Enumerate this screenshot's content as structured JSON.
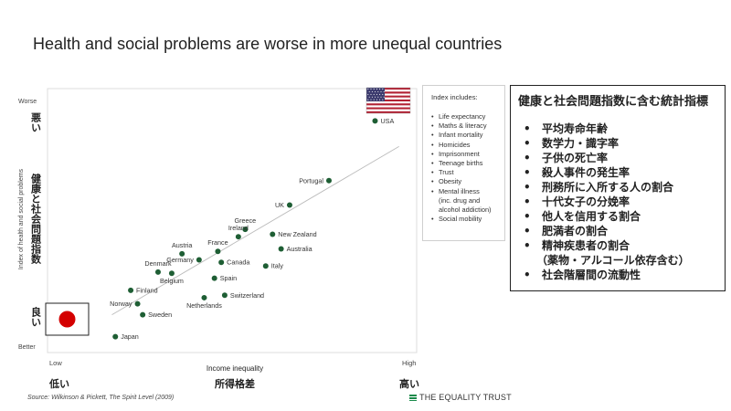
{
  "title": "Health and social problems are worse in more unequal countries",
  "chart_data": {
    "type": "scatter",
    "xlabel": "Income inequality",
    "xlabel_ja": "所得格差",
    "x_low": "Low",
    "x_low_ja": "低い",
    "x_high": "High",
    "x_high_ja": "高い",
    "ylabel": "Index of health and social problems",
    "ylabel_ja": "健康と社会問題指数",
    "y_top": "Worse",
    "y_top_ja": "悪い",
    "y_bottom": "Better",
    "y_bottom_ja": "良い",
    "xlim": [
      0,
      10
    ],
    "ylim": [
      0,
      10
    ],
    "point_color": "#1e5e34",
    "trendline": {
      "from": [
        1.35,
        1.1
      ],
      "to": [
        9.75,
        8.0
      ],
      "color": "#bbbbbb"
    },
    "points": [
      {
        "label": "USA",
        "x": 9.05,
        "y": 9.05,
        "label_side": "right"
      },
      {
        "label": "Portugal",
        "x": 7.7,
        "y": 6.6,
        "label_side": "left"
      },
      {
        "label": "UK",
        "x": 6.55,
        "y": 5.6,
        "label_side": "left"
      },
      {
        "label": "Greece",
        "x": 5.25,
        "y": 4.6,
        "label_side": "top"
      },
      {
        "label": "New Zealand",
        "x": 6.05,
        "y": 4.4,
        "label_side": "right"
      },
      {
        "label": "Ireland",
        "x": 5.05,
        "y": 4.3,
        "label_side": "top"
      },
      {
        "label": "Australia",
        "x": 6.3,
        "y": 3.8,
        "label_side": "right"
      },
      {
        "label": "Austria",
        "x": 3.4,
        "y": 3.6,
        "label_side": "top"
      },
      {
        "label": "France",
        "x": 4.45,
        "y": 3.7,
        "label_side": "top"
      },
      {
        "label": "Germany",
        "x": 3.9,
        "y": 3.35,
        "label_side": "left"
      },
      {
        "label": "Canada",
        "x": 4.55,
        "y": 3.25,
        "label_side": "right"
      },
      {
        "label": "Italy",
        "x": 5.85,
        "y": 3.1,
        "label_side": "right"
      },
      {
        "label": "Denmark",
        "x": 2.7,
        "y": 2.85,
        "label_side": "top"
      },
      {
        "label": "Belgium",
        "x": 3.1,
        "y": 2.8,
        "label_side": "bottom"
      },
      {
        "label": "Spain",
        "x": 4.35,
        "y": 2.6,
        "label_side": "right"
      },
      {
        "label": "Finland",
        "x": 1.9,
        "y": 2.1,
        "label_side": "right"
      },
      {
        "label": "Switzerland",
        "x": 4.65,
        "y": 1.9,
        "label_side": "right"
      },
      {
        "label": "Netherlands",
        "x": 4.05,
        "y": 1.8,
        "label_side": "bottom"
      },
      {
        "label": "Norway",
        "x": 2.1,
        "y": 1.55,
        "label_side": "left"
      },
      {
        "label": "Sweden",
        "x": 2.25,
        "y": 1.1,
        "label_side": "right"
      },
      {
        "label": "Japan",
        "x": 1.45,
        "y": 0.2,
        "label_side": "right"
      }
    ]
  },
  "legend": {
    "heading": "Index includes:",
    "items": [
      "Life expectancy",
      "Maths & literacy",
      "Infant mortality",
      "Homicides",
      "Imprisonment",
      "Teenage births",
      "Trust",
      "Obesity",
      "Mental illness",
      "(inc. drug and",
      "alcohol addiction)",
      "Social mobility"
    ]
  },
  "jp_box": {
    "heading": "健康と社会問題指数に含む統計指標",
    "items": [
      "平均寿命年齢",
      "数学力・識字率",
      "子供の死亡率",
      "殺人事件の発生率",
      "刑務所に入所する人の割合",
      "十代女子の分娩率",
      "他人を信用する割合",
      "肥満者の割合",
      "精神疾患者の割合",
      "（薬物・アルコール依存含む）",
      "社会階層間の流動性"
    ]
  },
  "source": "Source: Wilkinson & Pickett, The Spirit Level (2009)",
  "brand": "THE EQUALITY TRUST",
  "flags": {
    "usa": "usa-flag",
    "japan": "japan-flag",
    "usa_colors": [
      "#b22234",
      "#ffffff",
      "#3c3b6e"
    ],
    "japan_colors": [
      "#ffffff",
      "#d40000"
    ]
  }
}
